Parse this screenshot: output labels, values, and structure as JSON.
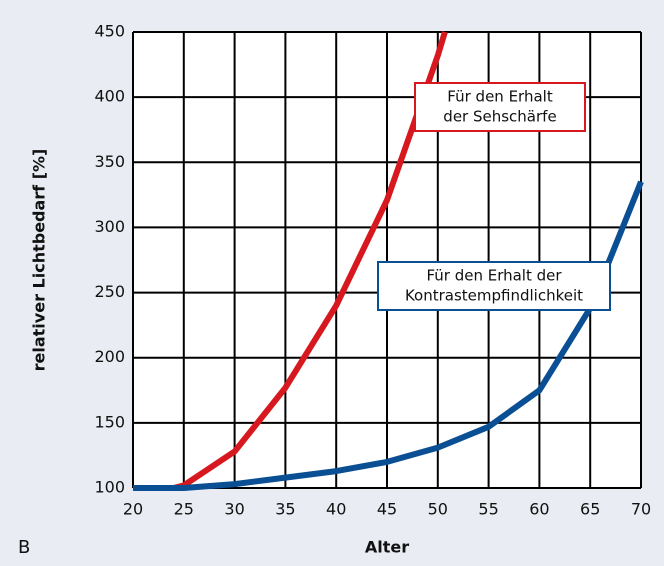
{
  "chart_data": {
    "type": "line",
    "panel_label": "B",
    "xlabel": "Alter",
    "ylabel": "relativer Lichtbedarf [%]",
    "xlim": [
      20,
      70
    ],
    "xticks": [
      20,
      25,
      30,
      35,
      40,
      45,
      50,
      55,
      60,
      65,
      70
    ],
    "ylim": [
      100,
      450
    ],
    "yticks": [
      100,
      150,
      200,
      250,
      300,
      350,
      400,
      450
    ],
    "grid": true,
    "series": [
      {
        "color": "#d7191f",
        "x": [
          20,
          24,
          25,
          30,
          35,
          40,
          45,
          50,
          50.7
        ],
        "values": [
          100,
          100,
          102,
          128,
          177,
          240,
          321,
          432,
          450
        ]
      },
      {
        "color": "#0a4f94",
        "x": [
          20,
          25,
          30,
          35,
          40,
          45,
          50,
          55,
          60,
          65,
          70
        ],
        "values": [
          100,
          100,
          103,
          108,
          113,
          120,
          131,
          147,
          175,
          238,
          335
        ]
      }
    ],
    "annotations": [
      {
        "lines": [
          "Für den Erhalt",
          "der Sehschärfe"
        ],
        "color": "#d7191f"
      },
      {
        "lines": [
          "Für den Erhalt der",
          "Kontrastempfindlichkeit"
        ],
        "color": "#0a4f94"
      }
    ]
  }
}
